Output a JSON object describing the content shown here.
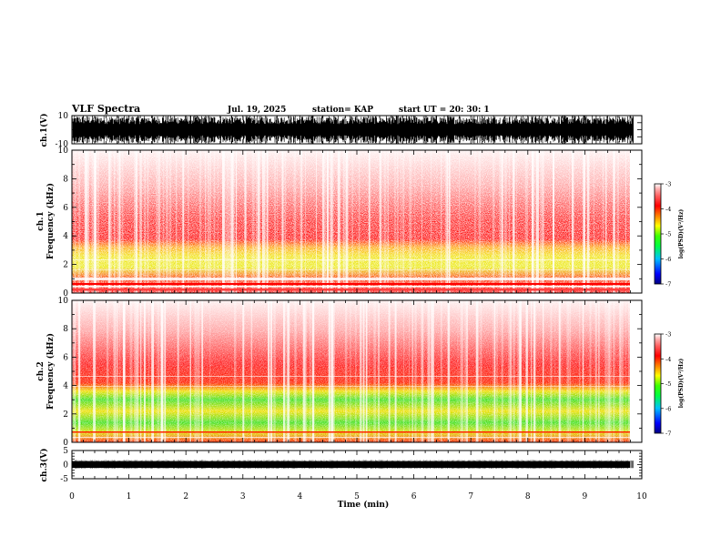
{
  "header": {
    "title": "VLF Spectra",
    "date": "Jul. 19, 2025",
    "station": "station= KAP",
    "start": "start UT = 20: 30: 1"
  },
  "chart_data": {
    "type": "heatmap",
    "title": "VLF Spectra",
    "xlabel": "Time (min)",
    "xlim": [
      0,
      10
    ],
    "x_ticks": [
      "0",
      "1",
      "2",
      "3",
      "4",
      "5",
      "6",
      "7",
      "8",
      "9",
      "10"
    ],
    "panels": [
      {
        "name": "ch1-waveform",
        "ylabel": "ch.1(V)",
        "ylim": [
          -10,
          10
        ],
        "y_ticks": [
          "10",
          "-10"
        ],
        "data_end_min": 9.85
      },
      {
        "name": "ch1-spectrogram",
        "ylabel_top": "ch.1",
        "ylabel": "Frequency (kHz)",
        "ylim": [
          0,
          10
        ],
        "y_ticks": [
          "0",
          "2",
          "4",
          "6",
          "8",
          "10"
        ]
      },
      {
        "name": "ch2-spectrogram",
        "ylabel_top": "ch.2",
        "ylabel": "Frequency (kHz)",
        "ylim": [
          0,
          10
        ],
        "y_ticks": [
          "0",
          "2",
          "4",
          "6",
          "8",
          "10"
        ]
      },
      {
        "name": "ch3-waveform",
        "ylabel": "ch.3(V)",
        "ylim": [
          -5,
          5
        ],
        "y_ticks": [
          "5",
          "0",
          "-5"
        ]
      }
    ],
    "colorbar": {
      "label": "log(PSD)(V²/Hz)",
      "range": [
        -7,
        -3
      ],
      "ticks": [
        "-3",
        "-4",
        "-5",
        "-6",
        "-7"
      ],
      "colors": [
        "#000080",
        "#0000ff",
        "#00c0ff",
        "#00ff40",
        "#40ff00",
        "#ffff00",
        "#ff8000",
        "#ff0000",
        "#ff6060",
        "#ffb0b0",
        "#ffffff"
      ]
    }
  }
}
